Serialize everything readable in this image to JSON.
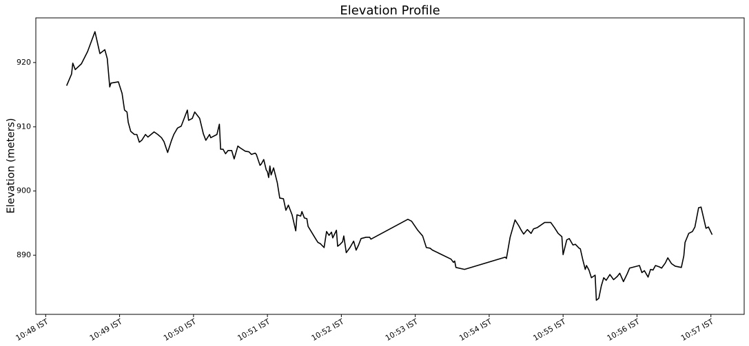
{
  "chart_data": {
    "type": "line",
    "title": "Elevation Profile",
    "y_label": "Elevation (meters)",
    "x": [
      "10:48:17",
      "10:48:21",
      "10:48:22",
      "10:48:24",
      "10:48:29",
      "10:48:34",
      "10:48:40",
      "10:48:44",
      "10:48:48",
      "10:48:50",
      "10:48:52",
      "10:48:53",
      "10:48:59",
      "10:49:02",
      "10:49:04",
      "10:49:06",
      "10:49:07",
      "10:49:09",
      "10:49:12",
      "10:49:14",
      "10:49:16",
      "10:49:18",
      "10:49:21",
      "10:49:23",
      "10:49:28",
      "10:49:31",
      "10:49:34",
      "10:49:36",
      "10:49:39",
      "10:49:42",
      "10:49:44",
      "10:49:47",
      "10:49:50",
      "10:49:53",
      "10:49:55",
      "10:49:56",
      "10:49:59",
      "10:50:01",
      "10:50:05",
      "10:50:08",
      "10:50:10",
      "10:50:13",
      "10:50:14",
      "10:50:19",
      "10:50:21",
      "10:50:22",
      "10:50:24",
      "10:50:26",
      "10:50:28",
      "10:50:31",
      "10:50:33",
      "10:50:36",
      "10:50:38",
      "10:50:42",
      "10:50:45",
      "10:50:47",
      "10:50:50",
      "10:50:51",
      "10:50:54",
      "10:50:55",
      "10:50:57",
      "10:50:59",
      "10:51:00",
      "10:51:01",
      "10:51:02",
      "10:51:03",
      "10:51:05",
      "10:51:08",
      "10:51:10",
      "10:51:13",
      "10:51:15",
      "10:51:17",
      "10:51:20",
      "10:51:23",
      "10:51:24",
      "10:51:27",
      "10:51:28",
      "10:51:30",
      "10:51:32",
      "10:51:33",
      "10:51:39",
      "10:51:41",
      "10:51:43",
      "10:51:46",
      "10:51:48",
      "10:51:50",
      "10:51:52",
      "10:51:53",
      "10:51:56",
      "10:51:57",
      "10:51:59",
      "10:52:01",
      "10:52:02",
      "10:52:04",
      "10:52:07",
      "10:52:10",
      "10:52:12",
      "10:52:14",
      "10:52:16",
      "10:52:20",
      "10:52:23",
      "10:52:24",
      "10:52:54",
      "10:52:57",
      "10:53:02",
      "10:53:06",
      "10:53:09",
      "10:53:12",
      "10:53:14",
      "10:53:29",
      "10:53:31",
      "10:53:32",
      "10:53:33",
      "10:53:40",
      "10:54:13",
      "10:54:14",
      "10:54:17",
      "10:54:21",
      "10:54:24",
      "10:54:26",
      "10:54:28",
      "10:54:31",
      "10:54:34",
      "10:54:36",
      "10:54:39",
      "10:54:42",
      "10:54:45",
      "10:54:50",
      "10:54:53",
      "10:54:56",
      "10:54:59",
      "10:55:00",
      "10:55:03",
      "10:55:05",
      "10:55:08",
      "10:55:10",
      "10:55:13",
      "10:55:14",
      "10:55:16",
      "10:55:18",
      "10:55:19",
      "10:55:21",
      "10:55:23",
      "10:55:26",
      "10:55:27",
      "10:55:29",
      "10:55:31",
      "10:55:33",
      "10:55:35",
      "10:55:38",
      "10:55:41",
      "10:55:44",
      "10:55:46",
      "10:55:49",
      "10:55:52",
      "10:55:54",
      "10:55:58",
      "10:56:02",
      "10:56:04",
      "10:56:06",
      "10:56:09",
      "10:56:11",
      "10:56:13",
      "10:56:15",
      "10:56:18",
      "10:56:20",
      "10:56:23",
      "10:56:25",
      "10:56:28",
      "10:56:31",
      "10:56:36",
      "10:56:38",
      "10:56:39",
      "10:56:42",
      "10:56:45",
      "10:56:47",
      "10:56:50",
      "10:56:52",
      "10:56:56",
      "10:56:58",
      "10:57:01"
    ],
    "values": [
      916.4,
      918.2,
      919.9,
      918.9,
      919.8,
      921.7,
      924.8,
      921.4,
      922.0,
      920.6,
      916.2,
      916.8,
      917.0,
      915.2,
      912.6,
      912.3,
      910.7,
      909.3,
      908.8,
      908.8,
      907.6,
      907.9,
      908.8,
      908.4,
      909.2,
      908.8,
      908.3,
      907.7,
      906.0,
      907.8,
      908.8,
      909.8,
      910.1,
      911.6,
      912.6,
      911.0,
      911.3,
      912.3,
      911.3,
      908.9,
      907.9,
      908.8,
      908.3,
      908.8,
      910.4,
      906.5,
      906.5,
      905.8,
      906.3,
      906.3,
      905.0,
      907.0,
      906.7,
      906.2,
      906.1,
      905.7,
      905.9,
      905.7,
      904.0,
      904.2,
      904.9,
      903.3,
      903.0,
      902.1,
      903.9,
      902.5,
      903.6,
      901.3,
      898.9,
      898.8,
      897.0,
      897.8,
      896.3,
      893.8,
      896.3,
      896.1,
      896.8,
      895.8,
      895.7,
      894.5,
      892.6,
      892.0,
      891.8,
      891.2,
      893.7,
      893.1,
      893.6,
      892.7,
      893.9,
      891.4,
      891.7,
      892.1,
      893.0,
      890.4,
      891.2,
      892.2,
      890.8,
      891.6,
      892.6,
      892.8,
      892.8,
      892.5,
      895.6,
      895.3,
      893.9,
      893.0,
      891.2,
      891.1,
      890.8,
      889.4,
      888.9,
      889.1,
      888.1,
      887.8,
      889.7,
      889.5,
      892.8,
      895.5,
      894.6,
      893.9,
      893.3,
      894.0,
      893.4,
      894.1,
      894.3,
      894.7,
      895.1,
      895.1,
      894.3,
      893.4,
      892.9,
      890.1,
      892.4,
      892.6,
      891.6,
      891.7,
      891.1,
      891.0,
      889.3,
      887.8,
      888.4,
      887.7,
      886.5,
      886.9,
      883.0,
      883.3,
      885.2,
      886.5,
      886.1,
      887.0,
      886.2,
      886.7,
      887.2,
      885.9,
      887.1,
      888.0,
      888.2,
      888.4,
      887.3,
      887.6,
      886.6,
      887.8,
      887.7,
      888.4,
      888.2,
      888.0,
      888.8,
      889.6,
      888.7,
      888.3,
      888.1,
      889.9,
      892.0,
      893.4,
      893.7,
      894.4,
      897.4,
      897.5,
      894.2,
      894.4,
      893.2
    ],
    "color": "#000000",
    "xlim": [
      "10:47:52",
      "10:57:27"
    ],
    "xticks": [
      {
        "value": "10:48:00",
        "label": "10:48 IST"
      },
      {
        "value": "10:49:00",
        "label": "10:49 IST"
      },
      {
        "value": "10:50:00",
        "label": "10:50 IST"
      },
      {
        "value": "10:51:00",
        "label": "10:51 IST"
      },
      {
        "value": "10:52:00",
        "label": "10:52 IST"
      },
      {
        "value": "10:53:00",
        "label": "10:53 IST"
      },
      {
        "value": "10:54:00",
        "label": "10:54 IST"
      },
      {
        "value": "10:55:00",
        "label": "10:55 IST"
      },
      {
        "value": "10:56:00",
        "label": "10:56 IST"
      },
      {
        "value": "10:57:00",
        "label": "10:57 IST"
      }
    ],
    "ylim": [
      880.8,
      926.95
    ],
    "yticks": [
      890,
      900,
      910,
      920
    ],
    "grid": false
  }
}
